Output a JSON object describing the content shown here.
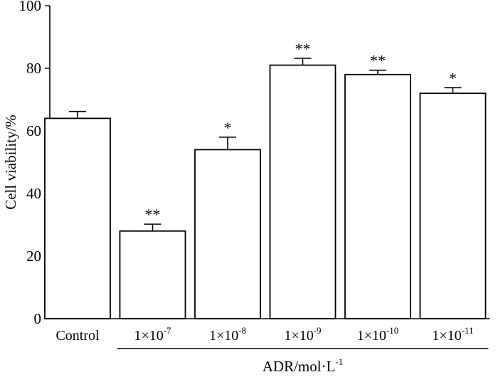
{
  "chart_data": {
    "type": "bar",
    "ylabel": "Cell viability/%",
    "ylim": [
      0,
      100
    ],
    "yticks": [
      0,
      20,
      40,
      60,
      80,
      100
    ],
    "categories": [
      {
        "label": "Control",
        "base": "",
        "exp": ""
      },
      {
        "label": "",
        "base": "1×10",
        "exp": "-7"
      },
      {
        "label": "",
        "base": "1×10",
        "exp": "-8"
      },
      {
        "label": "",
        "base": "1×10",
        "exp": "-9"
      },
      {
        "label": "",
        "base": "1×10",
        "exp": "-10"
      },
      {
        "label": "",
        "base": "1×10",
        "exp": "-11"
      }
    ],
    "values": [
      64,
      28,
      54,
      81,
      78,
      72
    ],
    "errors": [
      2.2,
      2.2,
      4.0,
      2.2,
      1.4,
      1.8
    ],
    "significance": [
      "",
      "**",
      "*",
      "**",
      "**",
      "*"
    ],
    "group_label": {
      "base": "ADR/mol·L",
      "exp": "-1"
    },
    "grid": false,
    "legend": "none"
  }
}
